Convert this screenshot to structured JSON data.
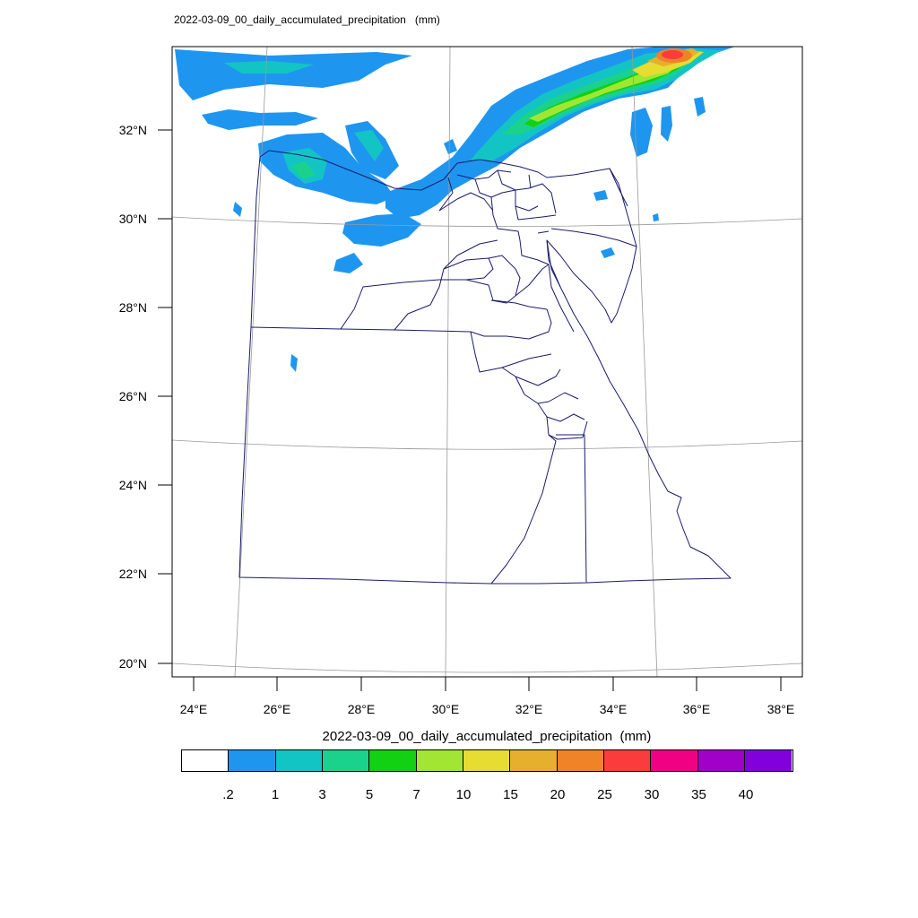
{
  "title": "2022-03-09_00_daily_accumulated_precipitation   (mm)",
  "lat_axis": [
    "32°N",
    "30°N",
    "28°N",
    "26°N",
    "24°N",
    "22°N",
    "20°N"
  ],
  "lon_axis": [
    "24°E",
    "26°E",
    "28°E",
    "30°E",
    "32°E",
    "34°E",
    "36°E",
    "38°E"
  ],
  "legend": {
    "title": "2022-03-09_00_daily_accumulated_precipitation  (mm)",
    "colors": [
      "#ffffff",
      "#1e96f0",
      "#13c4c4",
      "#1ad28c",
      "#12d012",
      "#a0e632",
      "#e6dc32",
      "#e6af2d",
      "#f08228",
      "#fa3c3c",
      "#f00082",
      "#a000c8",
      "#8200dc"
    ],
    "labels": [
      ".2",
      "1",
      "3",
      "5",
      "7",
      "10",
      "15",
      "20",
      "25",
      "30",
      "35",
      "40"
    ]
  },
  "colors": {
    "boundary": "#1a1a6e",
    "graticule": "#999999"
  }
}
